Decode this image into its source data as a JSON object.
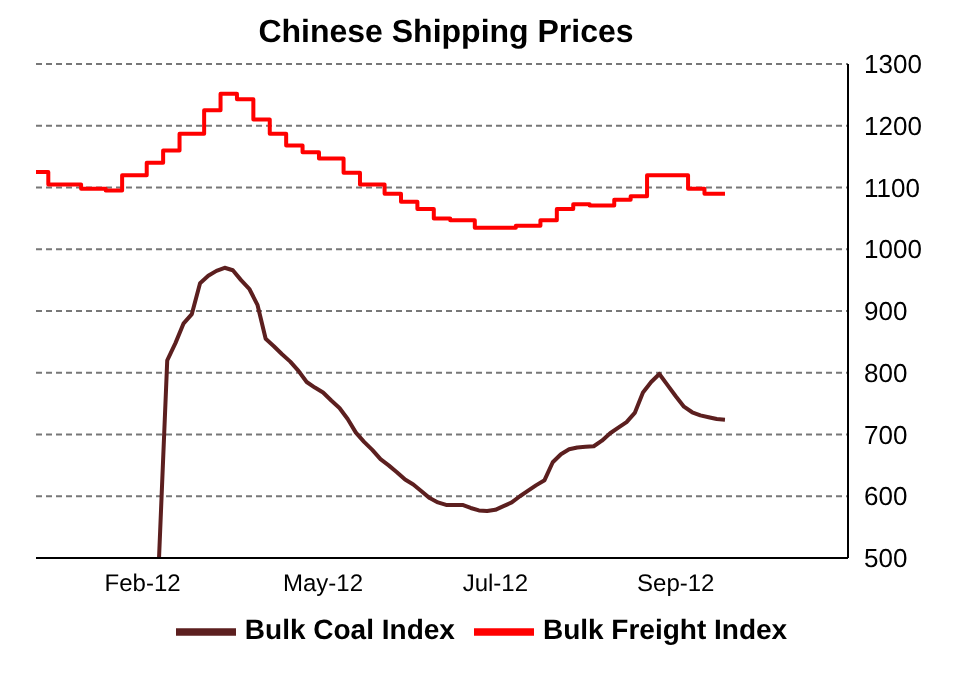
{
  "chart_data": {
    "type": "line",
    "title": "Chinese Shipping Prices",
    "categories": [
      null,
      null,
      null,
      null,
      null,
      null,
      null,
      null,
      null,
      null,
      null,
      null,
      null,
      "Feb-12",
      null,
      null,
      null,
      null,
      null,
      null,
      null,
      null,
      null,
      null,
      null,
      null,
      null,
      null,
      null,
      null,
      null,
      null,
      null,
      null,
      null,
      "May-12",
      null,
      null,
      null,
      null,
      null,
      null,
      null,
      null,
      null,
      null,
      null,
      null,
      null,
      null,
      null,
      null,
      null,
      null,
      null,
      null,
      "Jul-12",
      null,
      null,
      null,
      null,
      null,
      null,
      null,
      null,
      null,
      null,
      null,
      null,
      null,
      null,
      null,
      null,
      null,
      null,
      null,
      null,
      null,
      "Sep-12",
      null,
      null,
      null,
      null,
      null,
      null,
      null,
      null,
      null,
      null,
      null,
      null,
      null,
      null,
      null,
      null,
      null,
      null,
      null,
      null,
      null
    ],
    "series": [
      {
        "name": "Bulk Coal Index",
        "type": "line",
        "color": "#5c1f1f",
        "values": [
          null,
          null,
          null,
          null,
          null,
          null,
          null,
          null,
          null,
          null,
          null,
          null,
          null,
          null,
          null,
          500,
          820,
          848,
          880,
          895,
          945,
          957,
          965,
          970,
          966,
          950,
          936,
          910,
          855,
          843,
          830,
          818,
          803,
          785,
          776,
          768,
          755,
          743,
          725,
          703,
          688,
          675,
          660,
          650,
          639,
          627,
          619,
          608,
          597,
          590,
          586,
          586,
          586,
          581,
          577,
          576,
          578,
          584,
          590,
          600,
          609,
          618,
          626,
          655,
          668,
          676,
          679,
          680,
          681,
          690,
          702,
          711,
          720,
          735,
          768,
          785,
          798,
          780,
          762,
          745,
          736,
          731,
          728,
          725,
          724,
          null,
          null,
          null,
          null,
          null,
          null,
          null,
          null,
          null,
          null,
          null,
          null,
          null,
          null,
          null
        ]
      },
      {
        "name": "Bulk Freight Index",
        "type": "step",
        "color": "#ff0000",
        "values": [
          1125,
          1125,
          1105,
          1105,
          1105,
          1105,
          1098,
          1098,
          1098,
          1095,
          1095,
          1120,
          1120,
          1120,
          1140,
          1140,
          1160,
          1160,
          1187,
          1187,
          1187,
          1225,
          1225,
          1252,
          1252,
          1243,
          1243,
          1210,
          1210,
          1187,
          1187,
          1168,
          1168,
          1157,
          1157,
          1147,
          1147,
          1147,
          1124,
          1124,
          1105,
          1105,
          1105,
          1090,
          1090,
          1077,
          1077,
          1065,
          1065,
          1050,
          1050,
          1047,
          1047,
          1047,
          1035,
          1035,
          1035,
          1035,
          1035,
          1038,
          1038,
          1038,
          1047,
          1047,
          1065,
          1065,
          1073,
          1073,
          1071,
          1071,
          1071,
          1080,
          1080,
          1086,
          1086,
          1120,
          1120,
          1120,
          1120,
          1120,
          1098,
          1098,
          1090,
          1090,
          1090,
          null,
          null,
          null,
          null,
          null,
          null,
          null,
          null,
          null,
          null,
          null,
          null,
          null,
          null,
          null
        ]
      }
    ],
    "ylim": [
      500,
      1300
    ],
    "yticks": [
      500,
      600,
      700,
      800,
      900,
      1000,
      1100,
      1200,
      1300
    ],
    "grid": "y",
    "legend": "bottom",
    "marker": "none",
    "line_style": "solid"
  }
}
